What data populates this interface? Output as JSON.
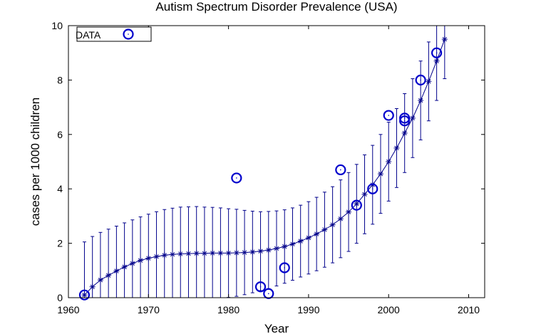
{
  "chart_data": {
    "type": "scatter",
    "title": "Autism Spectrum Disorder Prevalence (USA)",
    "xlabel": "Year",
    "ylabel": "cases per 1000 children",
    "xlim": [
      1960,
      2012
    ],
    "ylim": [
      0,
      10
    ],
    "xticks": [
      1960,
      1970,
      1980,
      1990,
      2000,
      2010
    ],
    "yticks": [
      0,
      2,
      4,
      6,
      8,
      10
    ],
    "grid": false,
    "legend_placement": "top-left",
    "colors": {
      "series": "#0000cc",
      "fit": "#00008b"
    },
    "series": [
      {
        "name": "DATA",
        "marker": "circle",
        "x": [
          1962,
          1981,
          1984,
          1985,
          1987,
          1994,
          1996,
          1998,
          2000,
          2002,
          2002,
          2004,
          2006
        ],
        "y": [
          0.1,
          4.4,
          0.4,
          0.15,
          1.1,
          4.7,
          3.4,
          4.0,
          6.7,
          6.6,
          6.5,
          8.0,
          9.0
        ]
      },
      {
        "marker": "asterisk",
        "line": true,
        "error_bars": true,
        "x": [
          1962,
          1963,
          1964,
          1965,
          1966,
          1967,
          1968,
          1969,
          1970,
          1971,
          1972,
          1973,
          1974,
          1975,
          1976,
          1977,
          1978,
          1979,
          1980,
          1981,
          1982,
          1983,
          1984,
          1985,
          1986,
          1987,
          1988,
          1989,
          1990,
          1991,
          1992,
          1993,
          1994,
          1995,
          1996,
          1997,
          1998,
          1999,
          2000,
          2001,
          2002,
          2003,
          2004,
          2005,
          2006,
          2007
        ],
        "y": [
          0.1,
          0.4,
          0.65,
          0.82,
          0.98,
          1.13,
          1.26,
          1.37,
          1.45,
          1.51,
          1.56,
          1.59,
          1.61,
          1.62,
          1.63,
          1.63,
          1.64,
          1.64,
          1.64,
          1.65,
          1.66,
          1.68,
          1.71,
          1.75,
          1.81,
          1.88,
          1.97,
          2.08,
          2.2,
          2.34,
          2.5,
          2.68,
          2.9,
          3.15,
          3.45,
          3.8,
          4.15,
          4.55,
          5.0,
          5.5,
          6.05,
          6.6,
          7.25,
          7.95,
          8.7,
          9.5
        ],
        "error": [
          1.95,
          1.85,
          1.75,
          1.7,
          1.65,
          1.62,
          1.6,
          1.6,
          1.62,
          1.65,
          1.68,
          1.7,
          1.72,
          1.72,
          1.72,
          1.7,
          1.68,
          1.66,
          1.63,
          1.6,
          1.55,
          1.5,
          1.45,
          1.42,
          1.38,
          1.35,
          1.33,
          1.32,
          1.33,
          1.35,
          1.38,
          1.4,
          1.43,
          1.45,
          1.45,
          1.45,
          1.45,
          1.45,
          1.45,
          1.45,
          1.45,
          1.45,
          1.45,
          1.45,
          1.45,
          1.45
        ]
      }
    ]
  }
}
